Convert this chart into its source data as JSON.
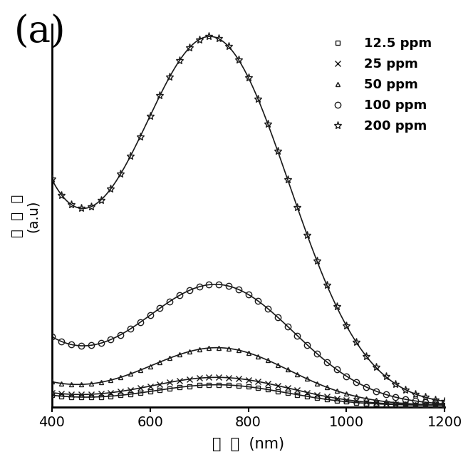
{
  "title": "(a)",
  "xlabel": "波  长  (nm)",
  "ylabel": "吸收率\n(a.u)",
  "xlim": [
    400,
    1200
  ],
  "ylim": [
    0,
    1.05
  ],
  "xticks": [
    400,
    600,
    800,
    1000,
    1200
  ],
  "background_color": "#ffffff",
  "line_color": "#1a1a1a",
  "series": [
    {
      "label": "12.5 ppm",
      "marker": "s",
      "peak": 0.055,
      "peak_wl": 740,
      "sigma": 140,
      "at400": 0.025,
      "exp_decay": 120,
      "baseline": 0.005
    },
    {
      "label": "25 ppm",
      "marker": "x",
      "peak": 0.075,
      "peak_wl": 740,
      "sigma": 145,
      "at400": 0.03,
      "exp_decay": 120,
      "baseline": 0.005
    },
    {
      "label": "50 ppm",
      "marker": "^",
      "peak": 0.155,
      "peak_wl": 740,
      "sigma": 145,
      "at400": 0.055,
      "exp_decay": 120,
      "baseline": 0.005
    },
    {
      "label": "100 ppm",
      "marker": "o",
      "peak": 0.32,
      "peak_wl": 740,
      "sigma": 155,
      "at400": 0.16,
      "exp_decay": 130,
      "baseline": 0.005
    },
    {
      "label": "200 ppm",
      "marker": "*",
      "peak": 0.97,
      "peak_wl": 730,
      "sigma": 155,
      "at400": 0.52,
      "exp_decay": 130,
      "baseline": 0.005
    }
  ]
}
